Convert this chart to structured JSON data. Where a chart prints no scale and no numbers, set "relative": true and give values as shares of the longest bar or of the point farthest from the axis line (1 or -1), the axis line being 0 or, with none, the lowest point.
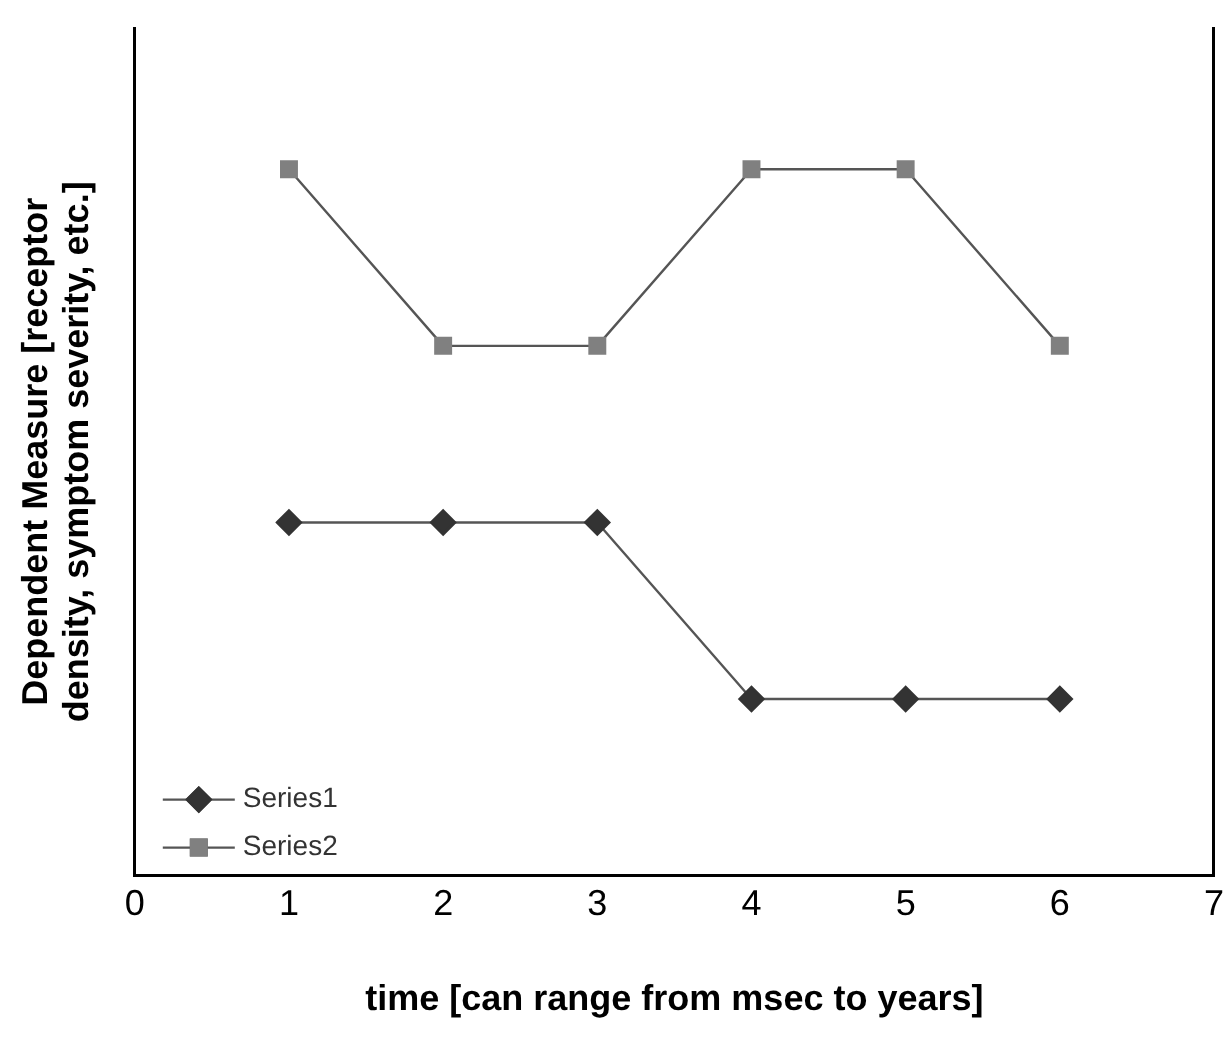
{
  "chart_data": {
    "type": "line",
    "xlabel": "time [can range from msec to years]",
    "ylabel": "Dependent Measure [receptor density, symptom severity, etc.]",
    "relative": true,
    "x": [
      1,
      2,
      3,
      4,
      5,
      6
    ],
    "xlim": [
      0,
      7
    ],
    "xticks": [
      0,
      1,
      2,
      3,
      4,
      5,
      6,
      7
    ],
    "grid": false,
    "legend": "bottom left",
    "line_style": "solid",
    "series": [
      {
        "name": "Series1",
        "color": "#333333",
        "marker": "diamond",
        "values": [
          0.5,
          0.5,
          0.5,
          0.25,
          0.25,
          0.25
        ]
      },
      {
        "name": "Series2",
        "color": "#808080",
        "marker": "square",
        "values": [
          1,
          0.75,
          0.75,
          1,
          1,
          0.75
        ]
      }
    ]
  }
}
